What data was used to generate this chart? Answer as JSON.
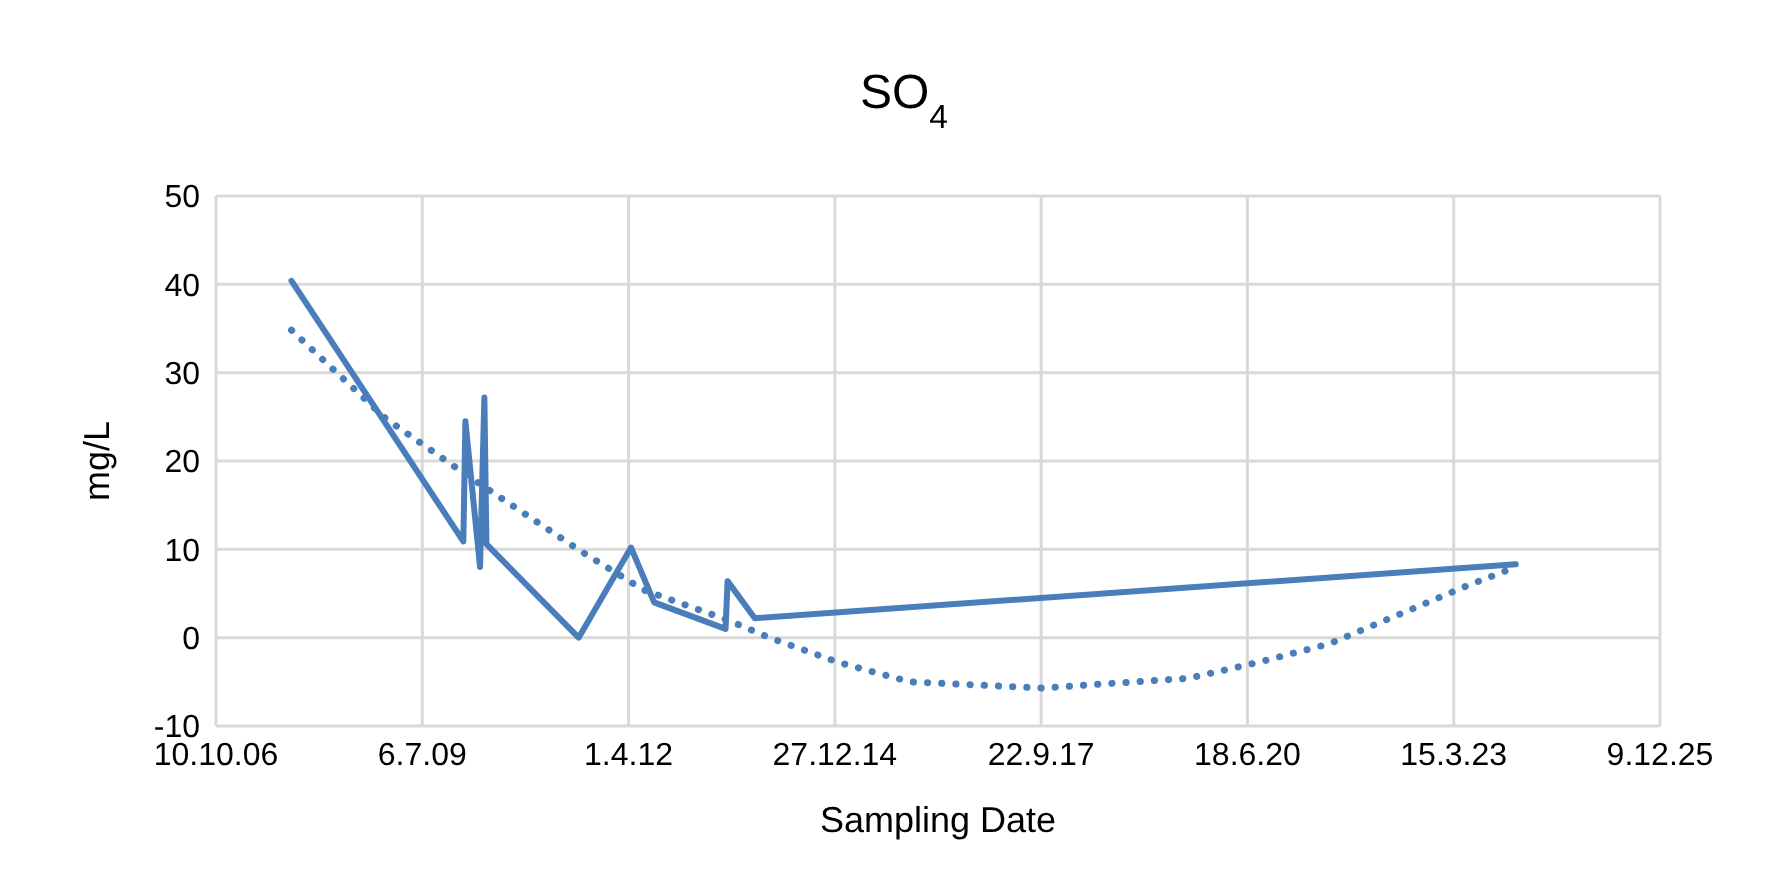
{
  "chart_data": {
    "type": "line",
    "title": "SO$_{4}$",
    "xlabel": "Sampling Date",
    "ylabel": "mg/L",
    "xlim": [
      "2006-10-10",
      "2025-12-09"
    ],
    "xticks": [
      {
        "value": "2006-10-10",
        "label": "10.10.06"
      },
      {
        "value": "2009-07-06",
        "label": "6.7.09"
      },
      {
        "value": "2012-04-01",
        "label": "1.4.12"
      },
      {
        "value": "2014-12-27",
        "label": "27.12.14"
      },
      {
        "value": "2017-09-22",
        "label": "22.9.17"
      },
      {
        "value": "2020-06-18",
        "label": "18.6.20"
      },
      {
        "value": "2023-03-15",
        "label": "15.3.23"
      },
      {
        "value": "2025-12-09",
        "label": "9.12.25"
      }
    ],
    "ylim": [
      -10,
      50
    ],
    "yticks": [
      -10,
      0,
      10,
      20,
      30,
      40,
      50
    ],
    "grid": true,
    "marker": "none",
    "series": [
      {
        "color": "#4a7ebb",
        "line_style": "solid",
        "x": [
          "2007-10-11",
          "2010-01-21",
          "2010-01-31",
          "2010-04-12",
          "2010-05-03",
          "2010-05-13",
          "2011-08-03",
          "2012-04-13",
          "2012-08-03",
          "2013-07-15",
          "2013-07-25",
          "2013-12-04",
          "2024-01-10"
        ],
        "values": [
          40.4,
          10.9,
          24.5,
          8,
          27.2,
          10.6,
          0,
          10.2,
          4,
          1,
          6.4,
          2.2,
          8.3
        ]
      },
      {
        "color": "#4a7ebb",
        "line_style": "dotted",
        "x": [
          "2007-10-11",
          "2009-01-10",
          "2010-01-31",
          "2011-08-13",
          "2012-06-13",
          "2013-07-25",
          "2014-02-13",
          "2015-01-14",
          "2015-12-26",
          "2017-09-26",
          "2019-09-07",
          "2020-08-08",
          "2021-07-19",
          "2022-06-20",
          "2023-05-21",
          "2024-01-10"
        ],
        "values": [
          34.8,
          24.8,
          18.5,
          9.8,
          5.4,
          2,
          0,
          -2.8,
          -5,
          -5.7,
          -4.6,
          -2.8,
          -0.7,
          2.6,
          5.9,
          8
        ]
      }
    ]
  }
}
